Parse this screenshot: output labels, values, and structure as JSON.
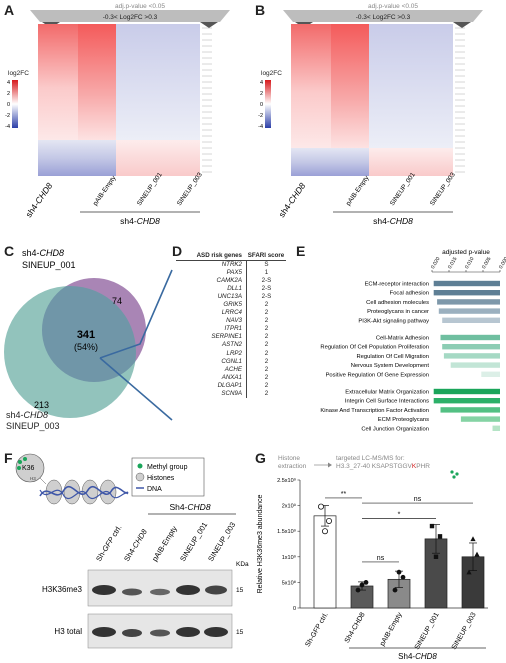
{
  "panels": {
    "A": {
      "label": "A",
      "top_annotation": "adj.p-value <0.05",
      "range_annotation": "-0.3< Log2FC >0.3",
      "legend_title": "log2FC",
      "legend_ticks": [
        "4",
        "2",
        "0",
        "-2",
        "-4"
      ],
      "row_label_prefix": "sh4-",
      "row_label_gene": "CHD8",
      "columns": [
        "pAIB-Empty",
        "SINEUP_001",
        "SINEUP_003"
      ],
      "group_label_prefix": "sh4-",
      "group_label_gene": "CHD8"
    },
    "B": {
      "label": "B",
      "top_annotation": "adj.p-value <0.05",
      "range_annotation": "-0.3< Log2FC >0.3",
      "legend_title": "log2FC",
      "legend_ticks": [
        "4",
        "2",
        "0",
        "-2",
        "-4"
      ],
      "row_label_prefix": "sh4-",
      "row_label_gene": "CHD8",
      "columns": [
        "pAIB-Empty",
        "SINEUP_001",
        "SINEUP_003"
      ],
      "group_label_prefix": "sh4-",
      "group_label_gene": "CHD8"
    },
    "C": {
      "label": "C",
      "set1_prefix": "sh4-",
      "set1_gene": "CHD8",
      "set1_name": "SINEUP_001",
      "set2_prefix": "sh4-",
      "set2_gene": "CHD8",
      "set2_name": "SINEUP_003",
      "only_set1": "74",
      "overlap": "341",
      "overlap_pct": "(54%)",
      "only_set2": "213"
    },
    "D": {
      "label": "D",
      "col1": "ASD risk genes",
      "col2": "SFARI score",
      "rows": [
        {
          "gene": "NTRK2",
          "score": "S"
        },
        {
          "gene": "PAX5",
          "score": "1"
        },
        {
          "gene": "CAMK2A",
          "score": "2-S"
        },
        {
          "gene": "DLL1",
          "score": "2-S"
        },
        {
          "gene": "UNC13A",
          "score": "2-S"
        },
        {
          "gene": "GRIK5",
          "score": "2"
        },
        {
          "gene": "LRRC4",
          "score": "2"
        },
        {
          "gene": "NAV3",
          "score": "2"
        },
        {
          "gene": "ITPR1",
          "score": "2"
        },
        {
          "gene": "SERPINE1",
          "score": "2"
        },
        {
          "gene": "ASTN2",
          "score": "2"
        },
        {
          "gene": "LRP2",
          "score": "2"
        },
        {
          "gene": "CGNL1",
          "score": "2"
        },
        {
          "gene": "ACHE",
          "score": "2"
        },
        {
          "gene": "ANXA1",
          "score": "2"
        },
        {
          "gene": "DLGAP1",
          "score": "2"
        },
        {
          "gene": "SCN9A",
          "score": "2"
        }
      ]
    },
    "E": {
      "label": "E",
      "axis_title": "adjusted p-value",
      "ticks": [
        "0.020",
        "0.015",
        "0.010",
        "0.005",
        "0.000"
      ]
    },
    "F": {
      "label": "F",
      "mark_label": "K36",
      "histone_tag": "H3",
      "legend": [
        "Methyl group",
        "Histones",
        "DNA"
      ],
      "group_prefix": "Sh4-",
      "group_gene": "CHD8",
      "lane_labels": [
        {
          "prefix": "Sh-",
          "gene": "GFP",
          "suffix": " ctrl."
        },
        {
          "prefix": "Sh4-",
          "gene": "CHD8",
          "suffix": ""
        },
        {
          "prefix": "pAIB-Empty",
          "gene": "",
          "suffix": ""
        },
        {
          "prefix": "SINEUP_001",
          "gene": "",
          "suffix": ""
        },
        {
          "prefix": "SINEUP_003",
          "gene": "",
          "suffix": ""
        }
      ],
      "kda_label": "KDa",
      "blot1_label": "H3K36me3",
      "blot1_kda": "15",
      "blot2_label": "H3 total",
      "blot2_kda": "15"
    },
    "G": {
      "label": "G",
      "flow_step1_line1": "Histone",
      "flow_step1_line2": "extraction",
      "flow_step2": "targeted LC-MS/MS for:",
      "peptide_prefix": "H3.3_27-40",
      "peptide_pre": "KSAPSTGGV",
      "peptide_k": "K",
      "peptide_post": "PHR",
      "group_prefix": "Sh4-",
      "group_gene": "CHD8",
      "sig_labels": [
        "**",
        "ns",
        "*",
        "ns"
      ]
    }
  },
  "chart_data": [
    {
      "type": "bar",
      "panel": "E",
      "orientation": "horizontal",
      "xlabel": "adjusted p-value",
      "xlim": [
        0.02,
        0
      ],
      "categories": [
        "ECM-receptor interaction",
        "Focal adhesion",
        "Cell adhesion molecules",
        "Proteoglycans in cancer",
        "PI3K-Akt signaling pathway",
        "Cell-Matrix Adhesion",
        "Regulation Of Cell Population Proliferation",
        "Regulation Of Cell Migration",
        "Nervous System Development",
        "Positive Regulation Of Gene Expression",
        "Extracellular Matrix Organization",
        "Integrin Cell Surface Interactions",
        "Kinase And Transcription Factor Activation",
        "ECM Proteoglycans",
        "Cell Junction Organization"
      ],
      "values": [
        0.0195,
        0.0195,
        0.0185,
        0.018,
        0.017,
        0.0175,
        0.017,
        0.0165,
        0.0145,
        0.0055,
        0.0195,
        0.0195,
        0.0175,
        0.0115,
        0.0022
      ],
      "colors": [
        "#5e7f95",
        "#5e7f95",
        "#7e98aa",
        "#9bb0bf",
        "#b7c6d1",
        "#6fbfa0",
        "#8ccdb4",
        "#a5d9c4",
        "#c2e5d6",
        "#dcefe7",
        "#1aa55a",
        "#2cb068",
        "#53c083",
        "#85d3a4",
        "#b5e4c6"
      ]
    },
    {
      "type": "bar",
      "panel": "G",
      "ylabel": "Relative H3K36me3 abundance",
      "ylim": [
        0,
        2500000000
      ],
      "yticks": [
        "0",
        "5x10⁸",
        "1x10⁹",
        "1.5x10⁹",
        "2x10⁹",
        "2.5x10⁹"
      ],
      "categories": [
        "Sh-GFP ctrl.",
        "Sh4-CHD8",
        "pAIB-Empty",
        "SINEUP_001",
        "SINEUP_003"
      ],
      "values": [
        1800000000,
        430000000,
        560000000,
        1350000000,
        1000000000
      ],
      "errors": [
        200000000,
        80000000,
        160000000,
        280000000,
        270000000
      ],
      "points": [
        [
          1980000000,
          1500000000,
          1700000000
        ],
        [
          350000000,
          450000000,
          500000000
        ],
        [
          350000000,
          700000000,
          600000000
        ],
        [
          1600000000,
          1000000000,
          1400000000
        ],
        [
          700000000,
          1350000000,
          1050000000
        ]
      ],
      "colors": [
        "#ffffff",
        "#5a5a5a",
        "#8a8a8a",
        "#4a4a4a",
        "#3a3a3a"
      ]
    }
  ]
}
